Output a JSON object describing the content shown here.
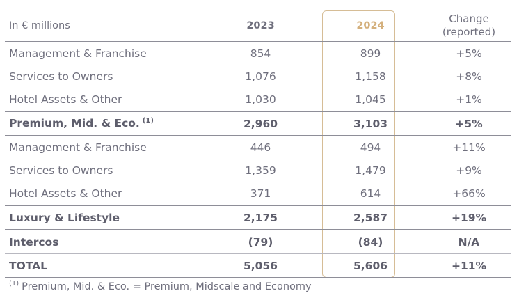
{
  "header": {
    "unit_label": "In € millions",
    "year_a": "2023",
    "year_b": "2024",
    "change_line1": "Change",
    "change_line2": "(reported)"
  },
  "colors": {
    "highlight": "#d4b07d",
    "text": "#6f6f7d",
    "rule": "#8e8e98"
  },
  "rows": [
    {
      "label": "Management & Franchise",
      "v2023": "854",
      "v2024": "899",
      "change": "+5%"
    },
    {
      "label": "Services to Owners",
      "v2023": "1,076",
      "v2024": "1,158",
      "change": "+8%"
    },
    {
      "label": "Hotel Assets & Other",
      "v2023": "1,030",
      "v2024": "1,045",
      "change": "+1%"
    },
    {
      "label": "Premium, Mid. & Eco.",
      "note": "(1)",
      "v2023": "2,960",
      "v2024": "3,103",
      "change": "+5%"
    },
    {
      "label": "Management & Franchise",
      "v2023": "446",
      "v2024": "494",
      "change": "+11%"
    },
    {
      "label": "Services to Owners",
      "v2023": "1,359",
      "v2024": "1,479",
      "change": "+9%"
    },
    {
      "label": "Hotel Assets & Other",
      "v2023": "371",
      "v2024": "614",
      "change": "+66%"
    },
    {
      "label": "Luxury & Lifestyle",
      "v2023": "2,175",
      "v2024": "2,587",
      "change": "+19%"
    },
    {
      "label": "Intercos",
      "v2023": "(79)",
      "v2024": "(84)",
      "change": "N/A"
    },
    {
      "label": "TOTAL",
      "v2023": "5,056",
      "v2024": "5,606",
      "change": "+11%"
    }
  ],
  "footnote": {
    "marker": "(1)",
    "text": "Premium, Mid. & Eco. = Premium, Midscale and Economy"
  }
}
